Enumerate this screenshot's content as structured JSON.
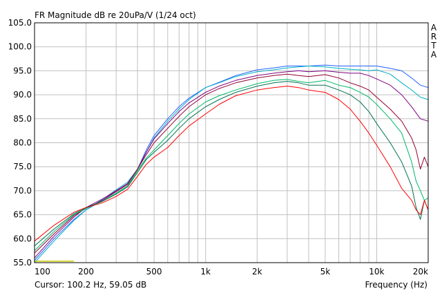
{
  "chart_data": {
    "type": "line",
    "title": "FR Magnitude dB re 20uPa/V (1/24 oct)",
    "xlabel": "Frequency (Hz)",
    "ylabel": "",
    "xscale": "log",
    "xlim": [
      100,
      20000
    ],
    "ylim": [
      55.0,
      105.0
    ],
    "grid": true,
    "legend": "none",
    "watermark": "ARTA",
    "cursor_text": "Cursor: 100.2 Hz, 59.05 dB",
    "x_ticks": [
      {
        "value": 100,
        "label": "100"
      },
      {
        "value": 200,
        "label": "200"
      },
      {
        "value": 500,
        "label": "500"
      },
      {
        "value": 1000,
        "label": "1k"
      },
      {
        "value": 2000,
        "label": "2k"
      },
      {
        "value": 5000,
        "label": "5k"
      },
      {
        "value": 10000,
        "label": "10k"
      },
      {
        "value": 20000,
        "label": "20k"
      }
    ],
    "y_ticks": [
      {
        "value": 105,
        "label": "105.0"
      },
      {
        "value": 100,
        "label": "100.0"
      },
      {
        "value": 95,
        "label": "95.0"
      },
      {
        "value": 90,
        "label": "90.0"
      },
      {
        "value": 85,
        "label": "85.0"
      },
      {
        "value": 80,
        "label": "80.0"
      },
      {
        "value": 75,
        "label": "75.0"
      },
      {
        "value": 70,
        "label": "70.0"
      },
      {
        "value": 65,
        "label": "65.0"
      },
      {
        "value": 60,
        "label": "60.0"
      },
      {
        "value": 55,
        "label": "55.0"
      }
    ],
    "reference_segment": {
      "x": [
        100,
        170
      ],
      "y": 55.3,
      "color": "#c8c800"
    },
    "series": [
      {
        "color": "#2060ff",
        "x": [
          100,
          130,
          170,
          200,
          250,
          300,
          350,
          400,
          450,
          500,
          600,
          700,
          800,
          1000,
          1200,
          1500,
          2000,
          2500,
          3000,
          3500,
          4000,
          5000,
          6000,
          7000,
          8000,
          9000,
          10000,
          12000,
          14000,
          16000,
          18000,
          20000
        ],
        "y": [
          55.5,
          60.0,
          64.0,
          66.0,
          68.0,
          70.0,
          71.5,
          74.5,
          78.5,
          81.5,
          85.0,
          87.5,
          89.3,
          91.5,
          92.6,
          94.0,
          95.2,
          95.6,
          96.0,
          96.0,
          96.0,
          96.2,
          96.0,
          96.0,
          96.0,
          96.0,
          96.0,
          95.5,
          95.0,
          93.5,
          92.0,
          91.5
        ]
      },
      {
        "color": "#00b0c8",
        "x": [
          100,
          130,
          170,
          200,
          250,
          300,
          350,
          400,
          450,
          500,
          600,
          700,
          800,
          1000,
          1200,
          1500,
          2000,
          2500,
          3000,
          3500,
          4000,
          5000,
          6000,
          7000,
          8000,
          9000,
          10000,
          12000,
          14000,
          16000,
          18000,
          20000
        ],
        "y": [
          55.0,
          59.5,
          63.8,
          66.0,
          68.2,
          70.2,
          71.8,
          74.5,
          78.0,
          81.0,
          84.5,
          87.0,
          89.0,
          91.5,
          92.5,
          93.8,
          94.8,
          95.2,
          95.6,
          95.8,
          96.0,
          95.8,
          95.5,
          95.3,
          95.2,
          95.0,
          95.2,
          94.3,
          92.5,
          91.0,
          89.5,
          89.0
        ]
      },
      {
        "color": "#800080",
        "x": [
          100,
          130,
          170,
          200,
          250,
          300,
          350,
          400,
          450,
          500,
          600,
          700,
          800,
          1000,
          1200,
          1500,
          2000,
          2500,
          3000,
          3500,
          4000,
          5000,
          6000,
          7000,
          8000,
          9000,
          10000,
          12000,
          14000,
          16000,
          18000,
          20000
        ],
        "y": [
          56.0,
          60.5,
          64.5,
          66.5,
          68.3,
          70.0,
          71.5,
          74.5,
          78.0,
          80.8,
          84.0,
          86.5,
          88.3,
          90.5,
          91.8,
          93.0,
          94.0,
          94.5,
          94.8,
          95.0,
          94.8,
          95.0,
          94.7,
          94.5,
          94.5,
          94.0,
          93.3,
          92.0,
          90.0,
          87.5,
          85.0,
          84.5
        ]
      },
      {
        "color": "#900030",
        "x": [
          100,
          130,
          170,
          200,
          250,
          300,
          350,
          400,
          450,
          500,
          600,
          700,
          800,
          1000,
          1200,
          1500,
          2000,
          2500,
          3000,
          3500,
          4000,
          5000,
          6000,
          7000,
          8000,
          9000,
          10000,
          12000,
          14000,
          16000,
          17000,
          18000,
          19000,
          20000
        ],
        "y": [
          57.0,
          61.0,
          64.8,
          66.3,
          68.0,
          69.8,
          71.3,
          74.5,
          77.5,
          80.0,
          83.0,
          85.5,
          87.5,
          90.0,
          91.3,
          92.5,
          93.5,
          94.0,
          94.3,
          94.0,
          93.8,
          94.2,
          93.5,
          92.5,
          91.8,
          91.0,
          89.5,
          87.0,
          84.5,
          81.0,
          78.5,
          74.5,
          77.0,
          75.0
        ]
      },
      {
        "color": "#00b868",
        "x": [
          100,
          130,
          170,
          200,
          250,
          300,
          350,
          400,
          450,
          500,
          600,
          700,
          800,
          1000,
          1200,
          1500,
          2000,
          2500,
          3000,
          3500,
          4000,
          5000,
          6000,
          7000,
          8000,
          9000,
          10000,
          12000,
          14000,
          16000,
          17000,
          18000,
          19000,
          20000
        ],
        "y": [
          57.5,
          61.5,
          65.0,
          66.3,
          67.8,
          69.5,
          71.0,
          74.2,
          76.8,
          78.5,
          81.5,
          84.0,
          86.0,
          88.5,
          89.8,
          91.0,
          92.3,
          93.0,
          93.2,
          92.8,
          92.5,
          93.0,
          92.0,
          91.5,
          90.5,
          89.5,
          88.0,
          85.0,
          82.0,
          76.0,
          72.0,
          70.0,
          68.0,
          68.5
        ]
      },
      {
        "color": "#007050",
        "x": [
          100,
          130,
          170,
          200,
          250,
          300,
          350,
          400,
          450,
          500,
          600,
          700,
          800,
          1000,
          1200,
          1500,
          2000,
          2500,
          3000,
          3500,
          4000,
          5000,
          6000,
          7000,
          8000,
          9000,
          10000,
          12000,
          14000,
          16000,
          17000,
          18000,
          19000,
          20000
        ],
        "y": [
          58.5,
          62.0,
          65.2,
          66.5,
          67.8,
          69.3,
          70.8,
          73.8,
          76.5,
          78.0,
          80.5,
          83.0,
          85.0,
          87.5,
          89.0,
          90.5,
          91.8,
          92.5,
          92.8,
          92.5,
          92.0,
          92.0,
          91.0,
          90.0,
          88.5,
          86.5,
          84.0,
          80.0,
          76.0,
          71.0,
          66.5,
          64.0,
          68.0,
          66.0
        ]
      },
      {
        "color": "#ff0000",
        "x": [
          100,
          130,
          170,
          200,
          250,
          300,
          350,
          400,
          450,
          500,
          600,
          700,
          800,
          1000,
          1200,
          1500,
          2000,
          2500,
          3000,
          3500,
          4000,
          5000,
          6000,
          7000,
          8000,
          9000,
          10000,
          12000,
          14000,
          16000,
          17000,
          18000,
          19000,
          20000
        ],
        "y": [
          59.5,
          62.8,
          65.5,
          66.5,
          67.5,
          68.8,
          70.3,
          73.0,
          75.5,
          77.0,
          79.0,
          81.5,
          83.5,
          86.0,
          88.0,
          89.8,
          91.0,
          91.5,
          91.8,
          91.5,
          91.0,
          90.5,
          89.0,
          87.0,
          84.5,
          82.0,
          79.5,
          75.0,
          70.5,
          68.0,
          66.0,
          65.0,
          68.0,
          66.0
        ]
      }
    ]
  }
}
